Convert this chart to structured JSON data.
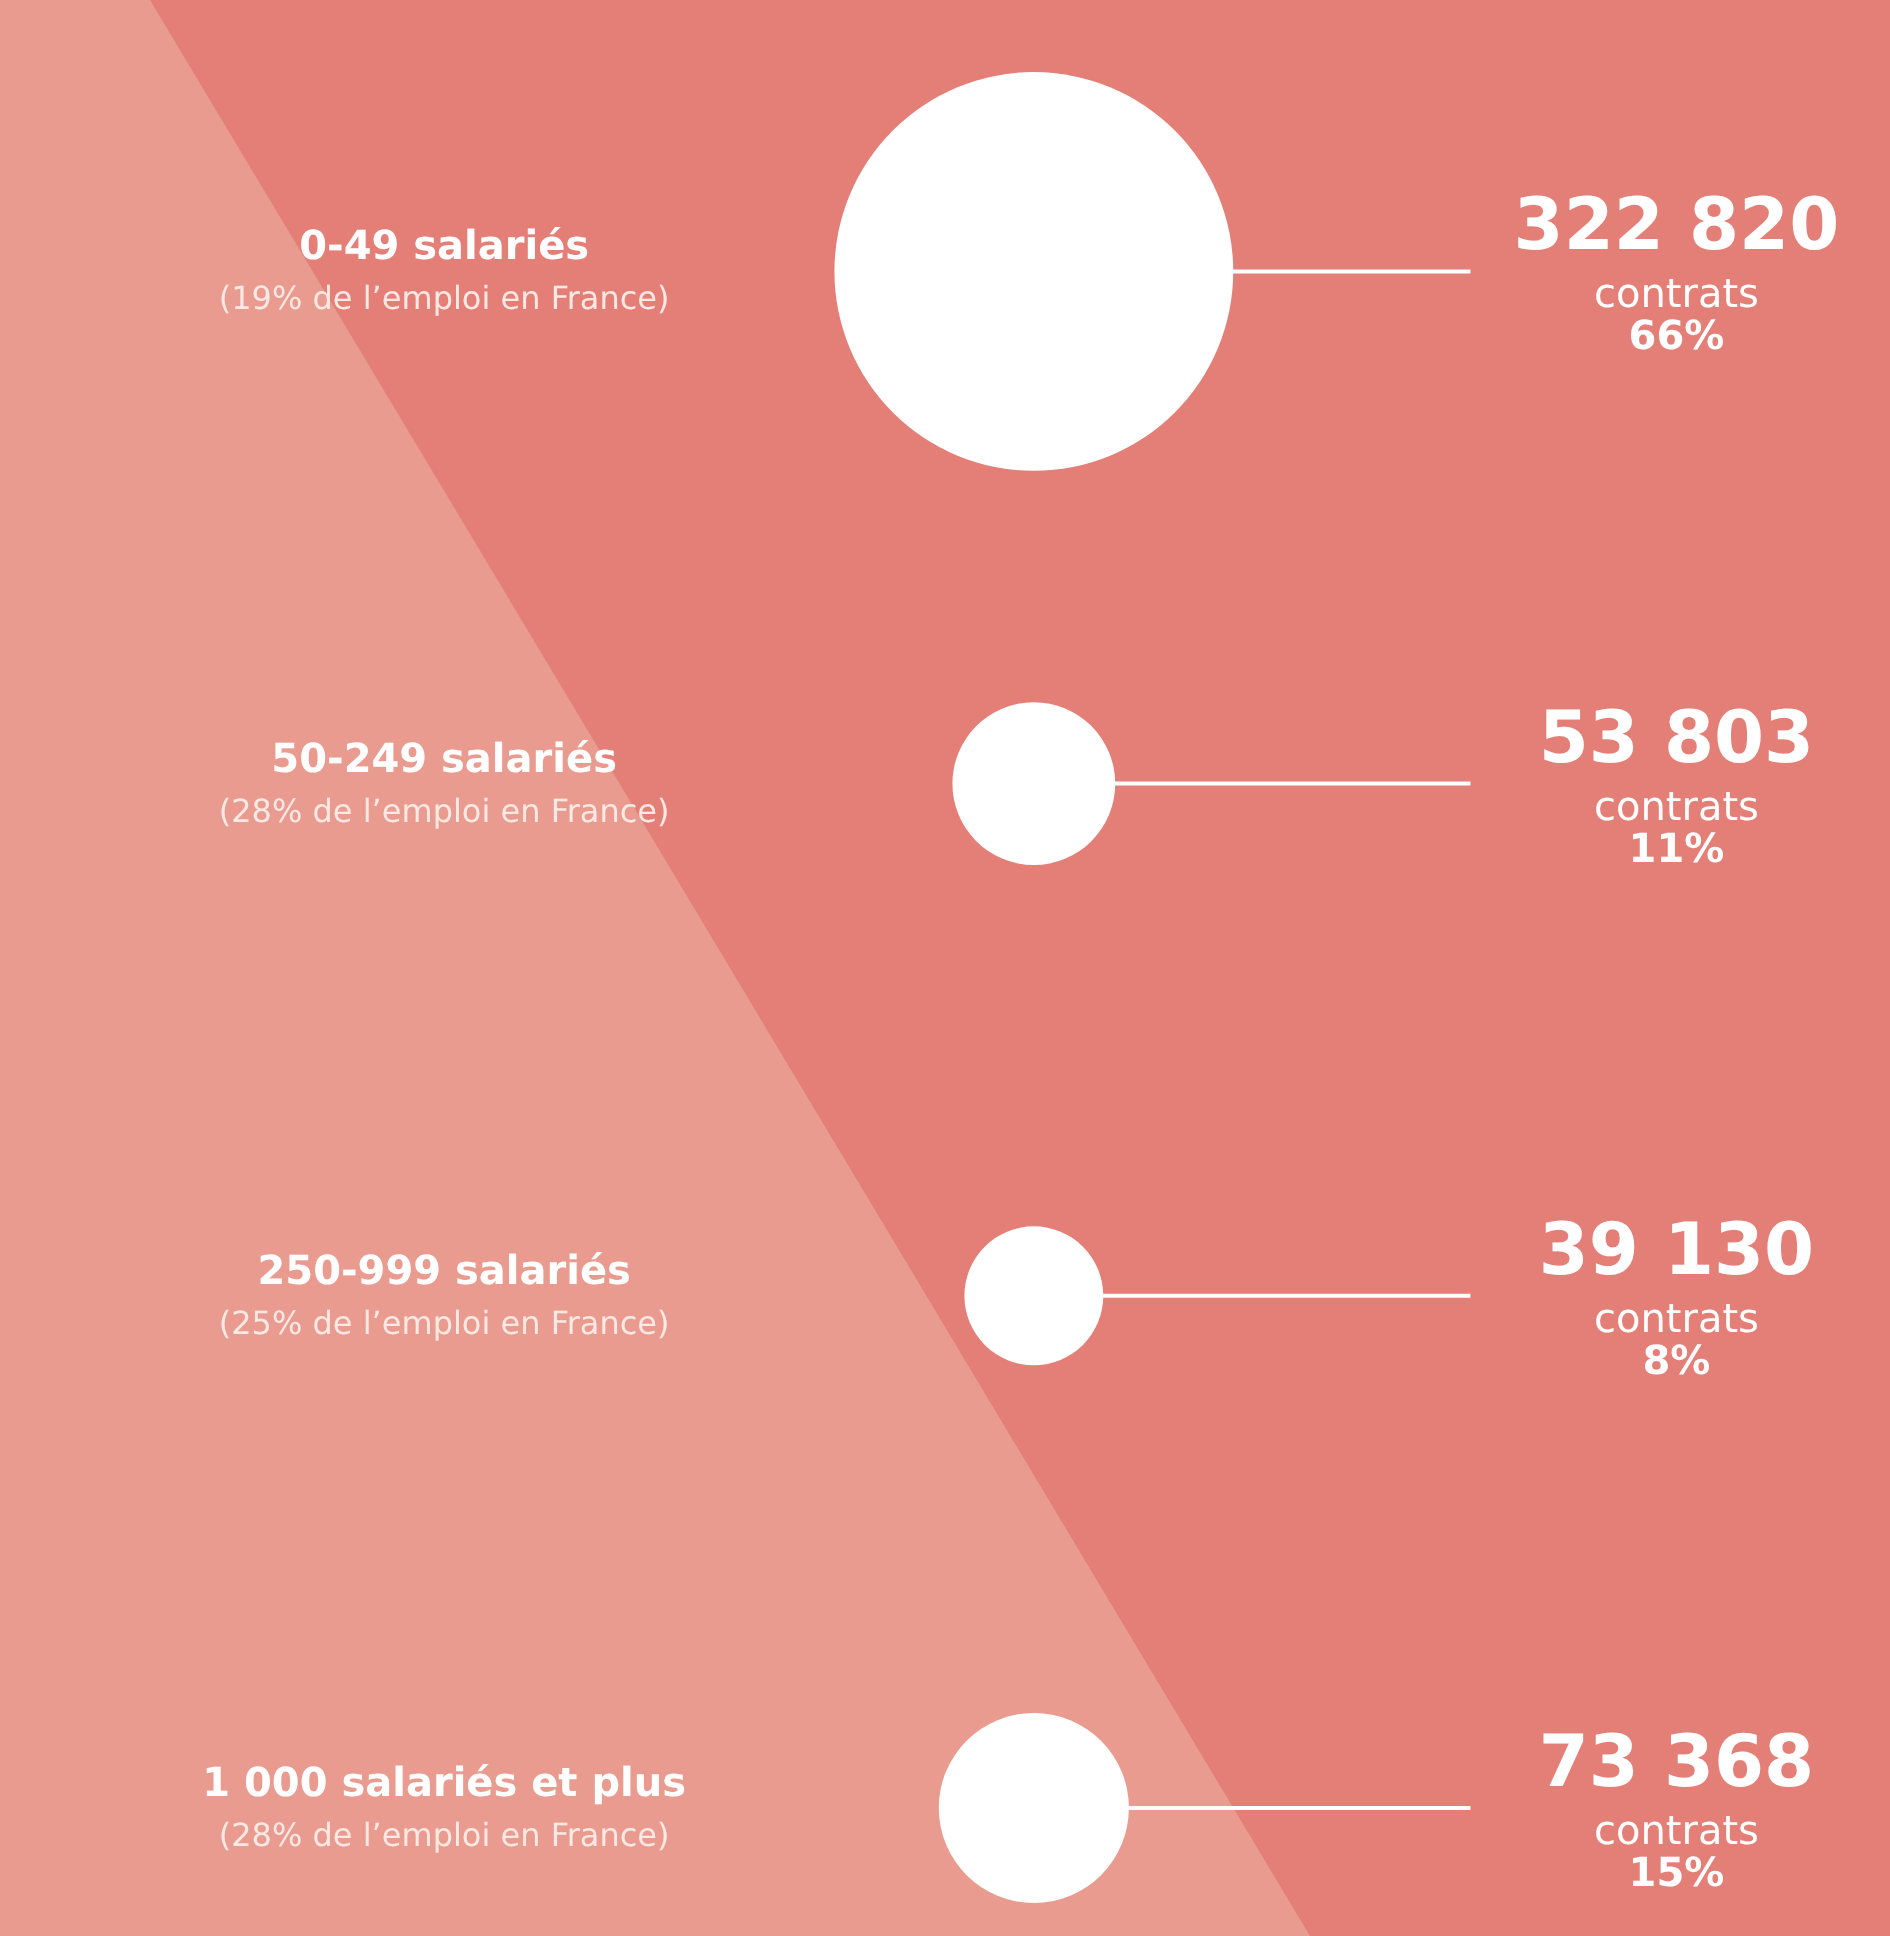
{
  "chart_data": {
    "type": "other",
    "categories": [
      "0-49 salariés",
      "50-249 salariés",
      "250-999 salariés",
      "1 000 salariés et plus"
    ],
    "values": [
      322820,
      53803,
      39130,
      73368
    ],
    "value_labels": [
      "322 820",
      "53 803",
      "39 130",
      "73 368"
    ],
    "color": "#ffffff",
    "annotations": [
      {
        "text": "(19% de l’emploi en France)",
        "y": "0-49 salariés"
      },
      {
        "text": "contrats",
        "y": "0-49 salariés"
      },
      {
        "text": "66%",
        "y": "0-49 salariés"
      },
      {
        "text": "(28% de l’emploi en France)",
        "y": "50-249 salariés"
      },
      {
        "text": "contrats",
        "y": "50-249 salariés"
      },
      {
        "text": "11%",
        "y": "50-249 salariés"
      },
      {
        "text": "(25% de l’emploi en France)",
        "y": "250-999 salariés"
      },
      {
        "text": "contrats",
        "y": "250-999 salariés"
      },
      {
        "text": "8%",
        "y": "250-999 salariés"
      },
      {
        "text": "(28% de l’emploi en France)",
        "y": "1 000 salariés et plus"
      },
      {
        "text": "contrats",
        "y": "1 000 salariés et plus"
      },
      {
        "text": "15%",
        "y": "1 000 salariés et plus"
      }
    ]
  }
}
